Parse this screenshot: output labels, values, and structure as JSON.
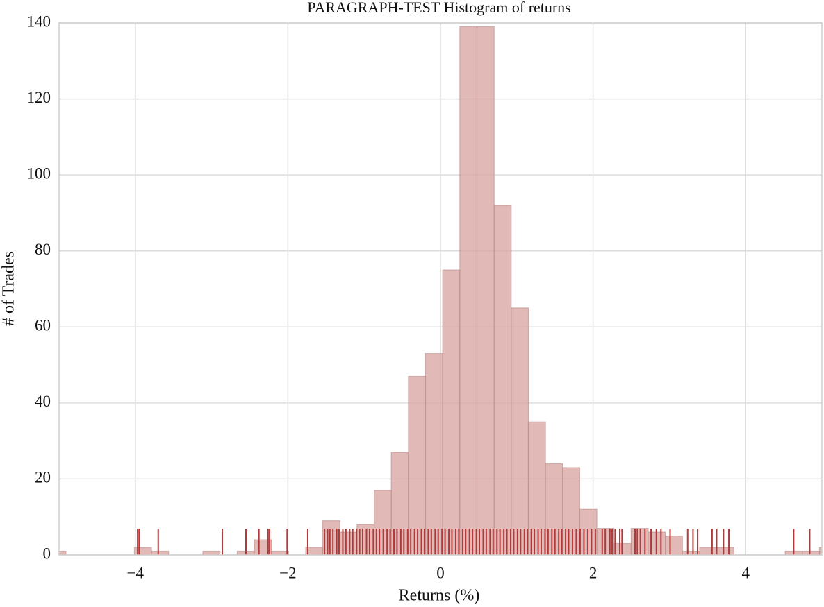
{
  "chart_data": {
    "type": "histogram",
    "title": "PARAGRAPH-TEST Histogram of returns",
    "x_label": "Returns (%)",
    "y_label": "# of Trades",
    "bins": [
      -5.13,
      -4.91,
      -4.686,
      -4.461,
      -4.237,
      -4.012,
      -3.788,
      -3.563,
      -3.339,
      -3.114,
      -2.89,
      -2.665,
      -2.441,
      -2.216,
      -1.992,
      -1.767,
      -1.543,
      -1.318,
      -1.094,
      -0.869,
      -0.645,
      -0.42,
      -0.196,
      0.029,
      0.254,
      0.478,
      0.703,
      0.927,
      1.152,
      1.376,
      1.601,
      1.825,
      2.05,
      2.274,
      2.499,
      2.723,
      2.948,
      3.172,
      3.397,
      3.621,
      3.846,
      4.07,
      4.295,
      4.519,
      4.744,
      4.968,
      5.193
    ],
    "counts": [
      1,
      0,
      0,
      0,
      0,
      2,
      1,
      0,
      0,
      1,
      0,
      1,
      4,
      1,
      0,
      2,
      9,
      6,
      8,
      17,
      27,
      47,
      53,
      75,
      139,
      139,
      92,
      65,
      35,
      24,
      23,
      12,
      7,
      3,
      7,
      6,
      5,
      1,
      2,
      2,
      0,
      0,
      0,
      1,
      1,
      2
    ],
    "color": "#d9a9a6",
    "rug": {
      "color": "#b03a3a",
      "values": [
        -3.97,
        -3.95,
        -3.7,
        -2.86,
        -2.55,
        -2.38,
        -2.26,
        -2.24,
        -2.01,
        -1.74,
        -1.52,
        -1.48,
        -1.45,
        -1.41,
        -1.36,
        -1.33,
        -1.28,
        -1.24,
        -1.19,
        -1.15,
        -1.1,
        -1.06,
        -1.02,
        -0.97,
        -0.93,
        -0.88,
        -0.84,
        -0.8,
        -0.75,
        -0.7,
        -0.66,
        -0.61,
        -0.57,
        -0.52,
        -0.48,
        -0.43,
        -0.39,
        -0.34,
        -0.3,
        -0.25,
        -0.21,
        -0.16,
        -0.12,
        -0.07,
        -0.03,
        0.02,
        0.06,
        0.11,
        0.15,
        0.2,
        0.24,
        0.29,
        0.33,
        0.38,
        0.42,
        0.47,
        0.51,
        0.56,
        0.6,
        0.65,
        0.69,
        0.74,
        0.78,
        0.83,
        0.87,
        0.92,
        0.96,
        1.01,
        1.05,
        1.1,
        1.14,
        1.19,
        1.23,
        1.28,
        1.32,
        1.37,
        1.41,
        1.46,
        1.5,
        1.55,
        1.59,
        1.64,
        1.68,
        1.73,
        1.78,
        1.83,
        1.88,
        1.93,
        1.98,
        2.03,
        2.12,
        2.16,
        2.22,
        2.25,
        2.29,
        2.35,
        2.38,
        2.55,
        2.58,
        2.62,
        2.68,
        2.76,
        2.83,
        2.89,
        3.01,
        3.24,
        3.31,
        3.37,
        3.56,
        3.62,
        3.71,
        3.78,
        4.63,
        4.84
      ]
    },
    "xlim": [
      -5,
      5
    ],
    "ylim": [
      0,
      140
    ],
    "xticks": [
      {
        "value": -4,
        "label": "−4"
      },
      {
        "value": -2,
        "label": "−2"
      },
      0,
      2,
      4
    ],
    "yticks": [
      0,
      20,
      40,
      60,
      80,
      100,
      120,
      140
    ],
    "grid": true
  }
}
